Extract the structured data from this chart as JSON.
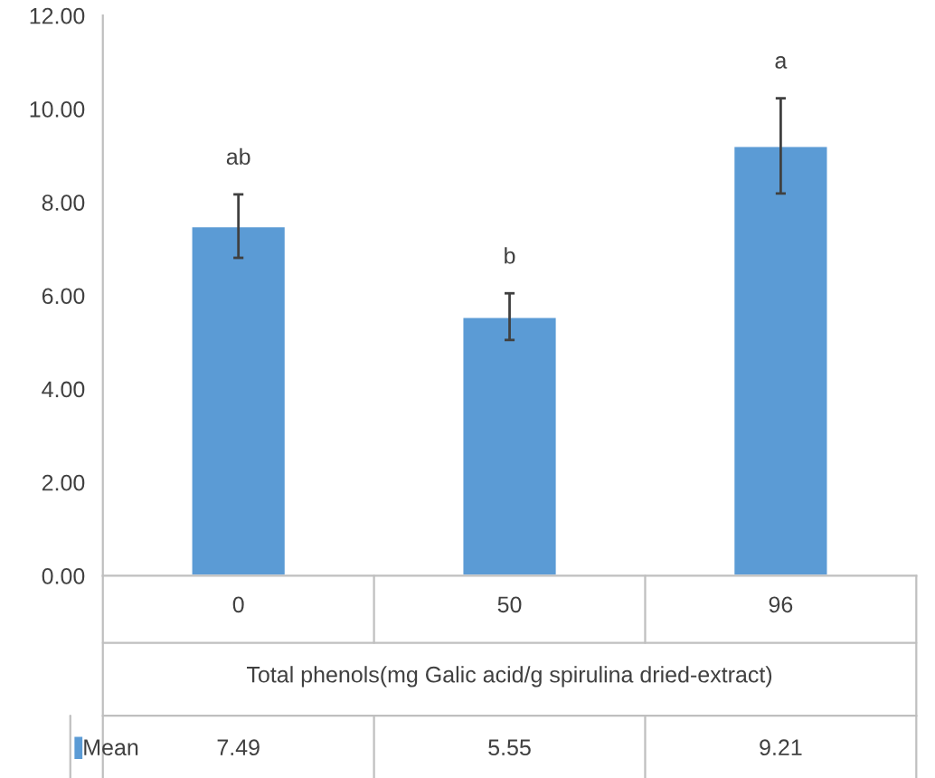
{
  "chart_data": {
    "type": "bar",
    "categories": [
      "0",
      "50",
      "96"
    ],
    "series": [
      {
        "name": "Mean",
        "color": "#5b9bd5",
        "values": [
          7.49,
          5.55,
          9.21
        ],
        "errors": [
          0.68,
          0.5,
          1.02
        ]
      }
    ],
    "xlabel": "Total phenols(mg Galic acid/g spirulina dried-extract)",
    "ylim": [
      0,
      12
    ],
    "yticks": [
      {
        "value": 0,
        "label": "0.00"
      },
      {
        "value": 2,
        "label": "2.00"
      },
      {
        "value": 4,
        "label": "4.00"
      },
      {
        "value": 6,
        "label": "6.00"
      },
      {
        "value": 8,
        "label": "8.00"
      },
      {
        "value": 10,
        "label": "10.00"
      },
      {
        "value": 12,
        "label": "12.00"
      }
    ],
    "annotations": [
      {
        "text": "ab",
        "x": "0",
        "y": 8.17
      },
      {
        "text": "b",
        "x": "50",
        "y": 6.05
      },
      {
        "text": "a",
        "x": "96",
        "y": 10.23
      }
    ],
    "data_labels": true,
    "grid": false,
    "legend": "bottom"
  }
}
